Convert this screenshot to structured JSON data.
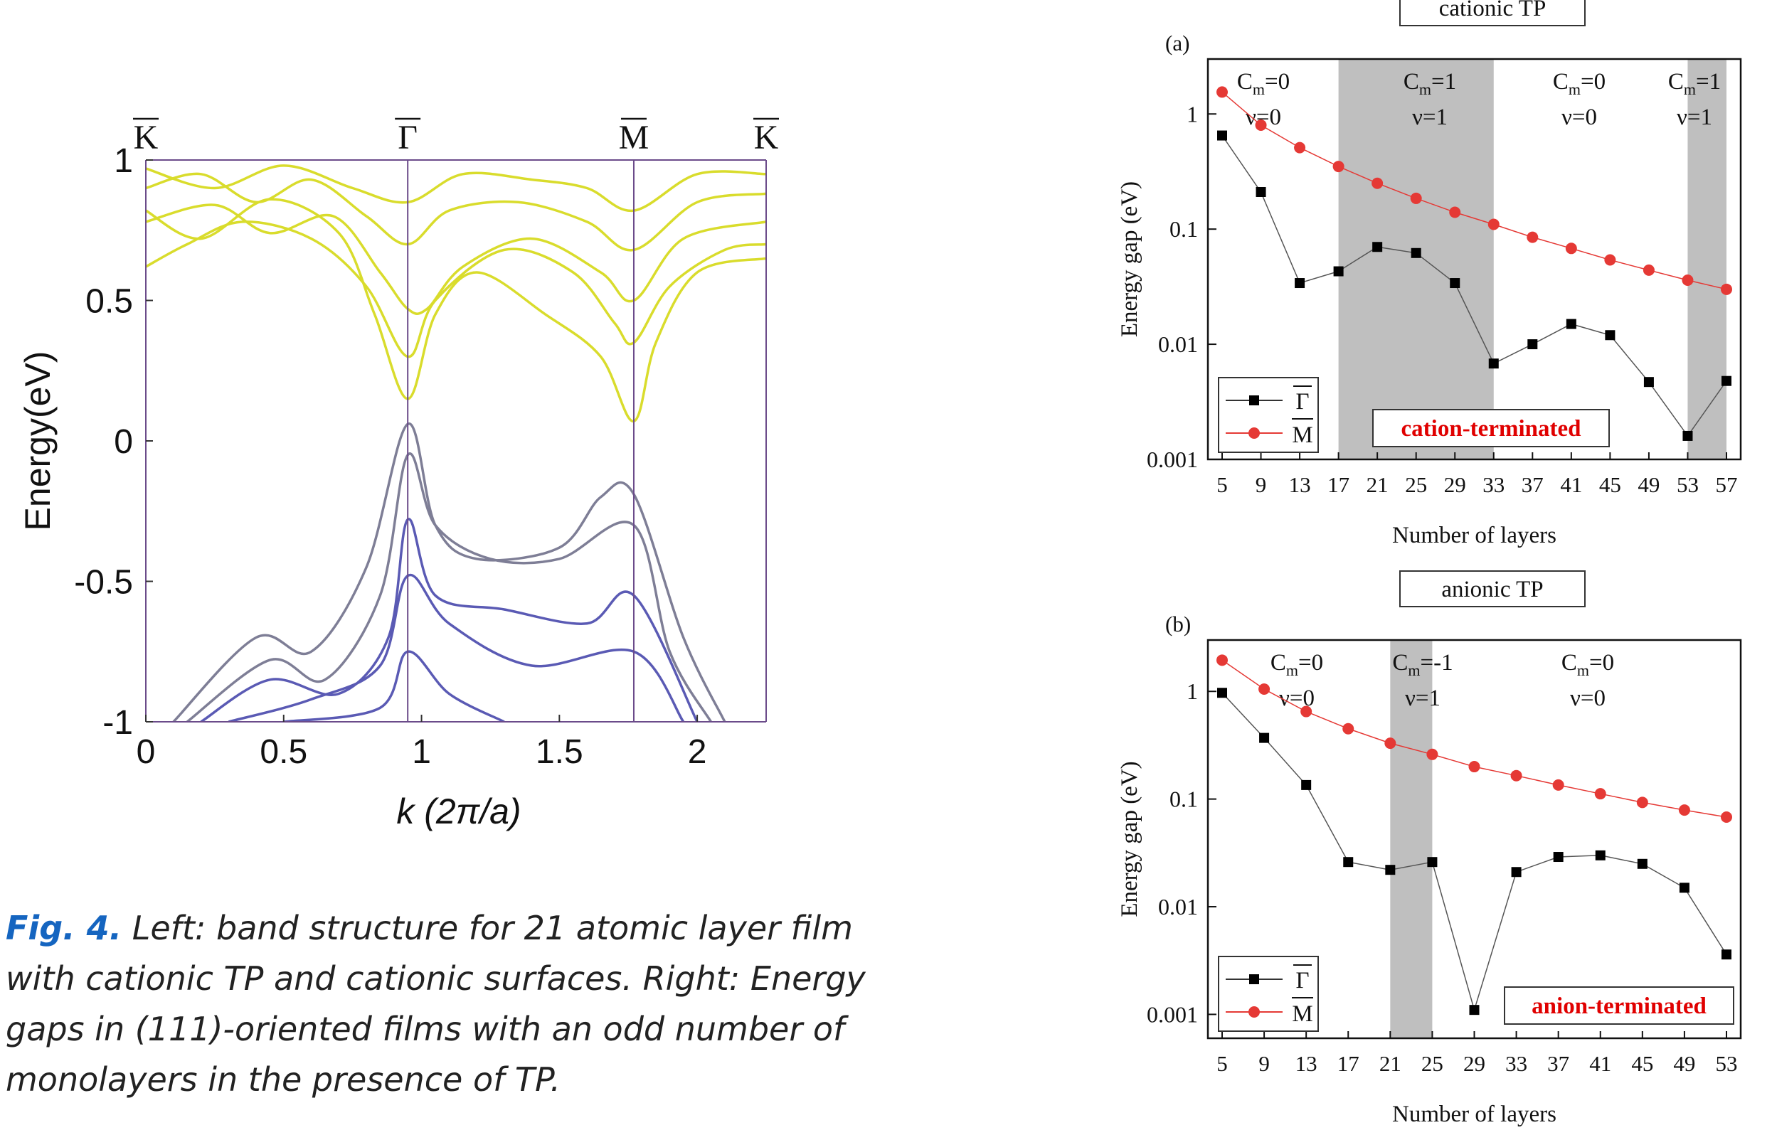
{
  "caption": {
    "lead": "Fig. 4.",
    "text": " Left: band structure for 21 atomic layer film with cationic TP and cationic surfaces. Right:  Energy gaps in (111)-oriented films with an odd number of monolayers in the presence of  TP."
  },
  "colors": {
    "caption_lead": "#1565c0",
    "gamma_series": "#000000",
    "m_series": "#e53935",
    "shade": "#bfbfbf",
    "term_label": "#e00000",
    "conduction_band": "#d9dc2c",
    "valence_band": "#5a5ab4",
    "k_line": "#6b4b8a"
  },
  "chart_data": [
    {
      "type": "line",
      "panel": "band-structure",
      "xlabel": "k (2π/a)",
      "ylabel": "Energy(eV)",
      "xlim": [
        0,
        2.25
      ],
      "ylim": [
        -1,
        1
      ],
      "xticks": [
        "0",
        "0.5",
        "1",
        "1.5",
        "2"
      ],
      "yticks": [
        "-1",
        "-0.5",
        "0",
        "0.5",
        "1"
      ],
      "kpoints": [
        {
          "label": "K",
          "x": 0
        },
        {
          "label": "Γ",
          "x": 0.95
        },
        {
          "label": "M",
          "x": 1.77
        },
        {
          "label": "K",
          "x": 2.25
        }
      ],
      "conduction_bands": [
        [
          [
            0,
            0.82
          ],
          [
            0.2,
            0.72
          ],
          [
            0.45,
            0.86
          ],
          [
            0.7,
            0.74
          ],
          [
            0.83,
            0.45
          ],
          [
            0.95,
            0.15
          ],
          [
            1.05,
            0.45
          ],
          [
            1.2,
            0.6
          ],
          [
            1.45,
            0.45
          ],
          [
            1.65,
            0.3
          ],
          [
            1.77,
            0.07
          ],
          [
            1.85,
            0.35
          ],
          [
            2.0,
            0.6
          ],
          [
            2.25,
            0.65
          ]
        ],
        [
          [
            0,
            0.62
          ],
          [
            0.15,
            0.7
          ],
          [
            0.35,
            0.78
          ],
          [
            0.6,
            0.72
          ],
          [
            0.8,
            0.55
          ],
          [
            0.95,
            0.3
          ],
          [
            1.05,
            0.5
          ],
          [
            1.3,
            0.68
          ],
          [
            1.55,
            0.6
          ],
          [
            1.7,
            0.42
          ],
          [
            1.77,
            0.35
          ],
          [
            1.9,
            0.55
          ],
          [
            2.1,
            0.68
          ],
          [
            2.25,
            0.7
          ]
        ],
        [
          [
            0,
            0.78
          ],
          [
            0.25,
            0.84
          ],
          [
            0.45,
            0.74
          ],
          [
            0.68,
            0.8
          ],
          [
            0.85,
            0.6
          ],
          [
            0.95,
            0.47
          ],
          [
            1.02,
            0.47
          ],
          [
            1.15,
            0.62
          ],
          [
            1.4,
            0.72
          ],
          [
            1.65,
            0.6
          ],
          [
            1.77,
            0.5
          ],
          [
            1.95,
            0.72
          ],
          [
            2.25,
            0.78
          ]
        ],
        [
          [
            0,
            0.9
          ],
          [
            0.2,
            0.95
          ],
          [
            0.4,
            0.85
          ],
          [
            0.6,
            0.93
          ],
          [
            0.8,
            0.8
          ],
          [
            0.95,
            0.7
          ],
          [
            1.1,
            0.82
          ],
          [
            1.35,
            0.85
          ],
          [
            1.6,
            0.78
          ],
          [
            1.77,
            0.68
          ],
          [
            2.0,
            0.85
          ],
          [
            2.25,
            0.88
          ]
        ],
        [
          [
            0,
            0.97
          ],
          [
            0.25,
            0.9
          ],
          [
            0.5,
            0.98
          ],
          [
            0.75,
            0.9
          ],
          [
            0.95,
            0.85
          ],
          [
            1.15,
            0.95
          ],
          [
            1.4,
            0.93
          ],
          [
            1.6,
            0.9
          ],
          [
            1.77,
            0.82
          ],
          [
            2.0,
            0.95
          ],
          [
            2.25,
            0.95
          ]
        ]
      ],
      "valence_bands": [
        [
          [
            0.1,
            -1
          ],
          [
            0.4,
            -0.7
          ],
          [
            0.6,
            -0.75
          ],
          [
            0.8,
            -0.45
          ],
          [
            0.95,
            0.06
          ],
          [
            1.05,
            -0.3
          ],
          [
            1.2,
            -0.42
          ],
          [
            1.5,
            -0.38
          ],
          [
            1.65,
            -0.2
          ],
          [
            1.77,
            -0.19
          ],
          [
            1.95,
            -0.7
          ],
          [
            2.1,
            -1
          ]
        ],
        [
          [
            0.15,
            -1
          ],
          [
            0.45,
            -0.78
          ],
          [
            0.65,
            -0.85
          ],
          [
            0.85,
            -0.55
          ],
          [
            0.95,
            -0.05
          ],
          [
            1.05,
            -0.3
          ],
          [
            1.25,
            -0.42
          ],
          [
            1.5,
            -0.42
          ],
          [
            1.77,
            -0.3
          ],
          [
            1.9,
            -0.75
          ],
          [
            2.05,
            -1
          ]
        ],
        [
          [
            0.2,
            -1
          ],
          [
            0.45,
            -0.85
          ],
          [
            0.7,
            -0.9
          ],
          [
            0.88,
            -0.7
          ],
          [
            0.95,
            -0.28
          ],
          [
            1.05,
            -0.55
          ],
          [
            1.3,
            -0.6
          ],
          [
            1.6,
            -0.65
          ],
          [
            1.77,
            -0.55
          ],
          [
            2.0,
            -1
          ]
        ],
        [
          [
            0.3,
            -1
          ],
          [
            0.6,
            -0.92
          ],
          [
            0.85,
            -0.8
          ],
          [
            0.95,
            -0.48
          ],
          [
            1.1,
            -0.65
          ],
          [
            1.4,
            -0.8
          ],
          [
            1.77,
            -0.75
          ],
          [
            1.95,
            -1
          ]
        ],
        [
          [
            0.5,
            -1
          ],
          [
            0.85,
            -0.95
          ],
          [
            0.95,
            -0.75
          ],
          [
            1.1,
            -0.9
          ],
          [
            1.3,
            -1
          ]
        ]
      ]
    },
    {
      "type": "line",
      "panel": "(a)",
      "title": "cationic TP",
      "xlabel": "Number of layers",
      "ylabel": "Energy gap (eV)",
      "yscale": "log",
      "ylim": [
        0.001,
        3
      ],
      "yticks": [
        "1",
        "0.1",
        "0.01",
        "0.001"
      ],
      "x": [
        5,
        9,
        13,
        17,
        21,
        25,
        29,
        33,
        37,
        41,
        45,
        49,
        53,
        57
      ],
      "series": [
        {
          "name": "Γ",
          "values": [
            0.65,
            0.21,
            0.034,
            0.043,
            0.07,
            0.062,
            0.034,
            0.0068,
            0.01,
            0.015,
            0.012,
            0.0047,
            0.0016,
            0.0048
          ]
        },
        {
          "name": "M",
          "values": [
            1.55,
            0.8,
            0.51,
            0.35,
            0.25,
            0.185,
            0.14,
            0.11,
            0.085,
            0.068,
            0.054,
            0.044,
            0.036,
            0.03
          ]
        }
      ],
      "shaded_regions": [
        [
          17,
          33
        ],
        [
          53,
          57
        ]
      ],
      "phase_labels": [
        {
          "c": "0",
          "nu": "ν=0"
        },
        {
          "c": "1",
          "nu": "ν=1"
        },
        {
          "c": "0",
          "nu": "ν=0"
        },
        {
          "c": "1",
          "nu": "ν=1"
        }
      ],
      "termination": "cation-terminated",
      "legend": "bottom-left"
    },
    {
      "type": "line",
      "panel": "(b)",
      "title": "anionic TP",
      "xlabel": "Number of layers",
      "ylabel": "Energy gap (eV)",
      "yscale": "log",
      "ylim": [
        0.0006,
        3
      ],
      "yticks": [
        "1",
        "0.1",
        "0.01",
        "0.001"
      ],
      "x": [
        5,
        9,
        13,
        17,
        21,
        25,
        29,
        33,
        37,
        41,
        45,
        49,
        53
      ],
      "series": [
        {
          "name": "Γ",
          "values": [
            0.97,
            0.37,
            0.135,
            0.026,
            0.022,
            0.026,
            0.0011,
            0.021,
            0.029,
            0.03,
            0.025,
            0.015,
            0.0036
          ]
        },
        {
          "name": "M",
          "values": [
            1.95,
            1.05,
            0.65,
            0.45,
            0.33,
            0.26,
            0.2,
            0.165,
            0.135,
            0.112,
            0.093,
            0.079,
            0.068
          ]
        }
      ],
      "shaded_regions": [
        [
          21,
          25
        ]
      ],
      "phase_labels": [
        {
          "c": "0",
          "nu": "ν=0"
        },
        {
          "c": "-1",
          "nu": "ν=1"
        },
        {
          "c": "0",
          "nu": "ν=0"
        }
      ],
      "termination": "anion-terminated",
      "legend": "bottom-left"
    }
  ]
}
